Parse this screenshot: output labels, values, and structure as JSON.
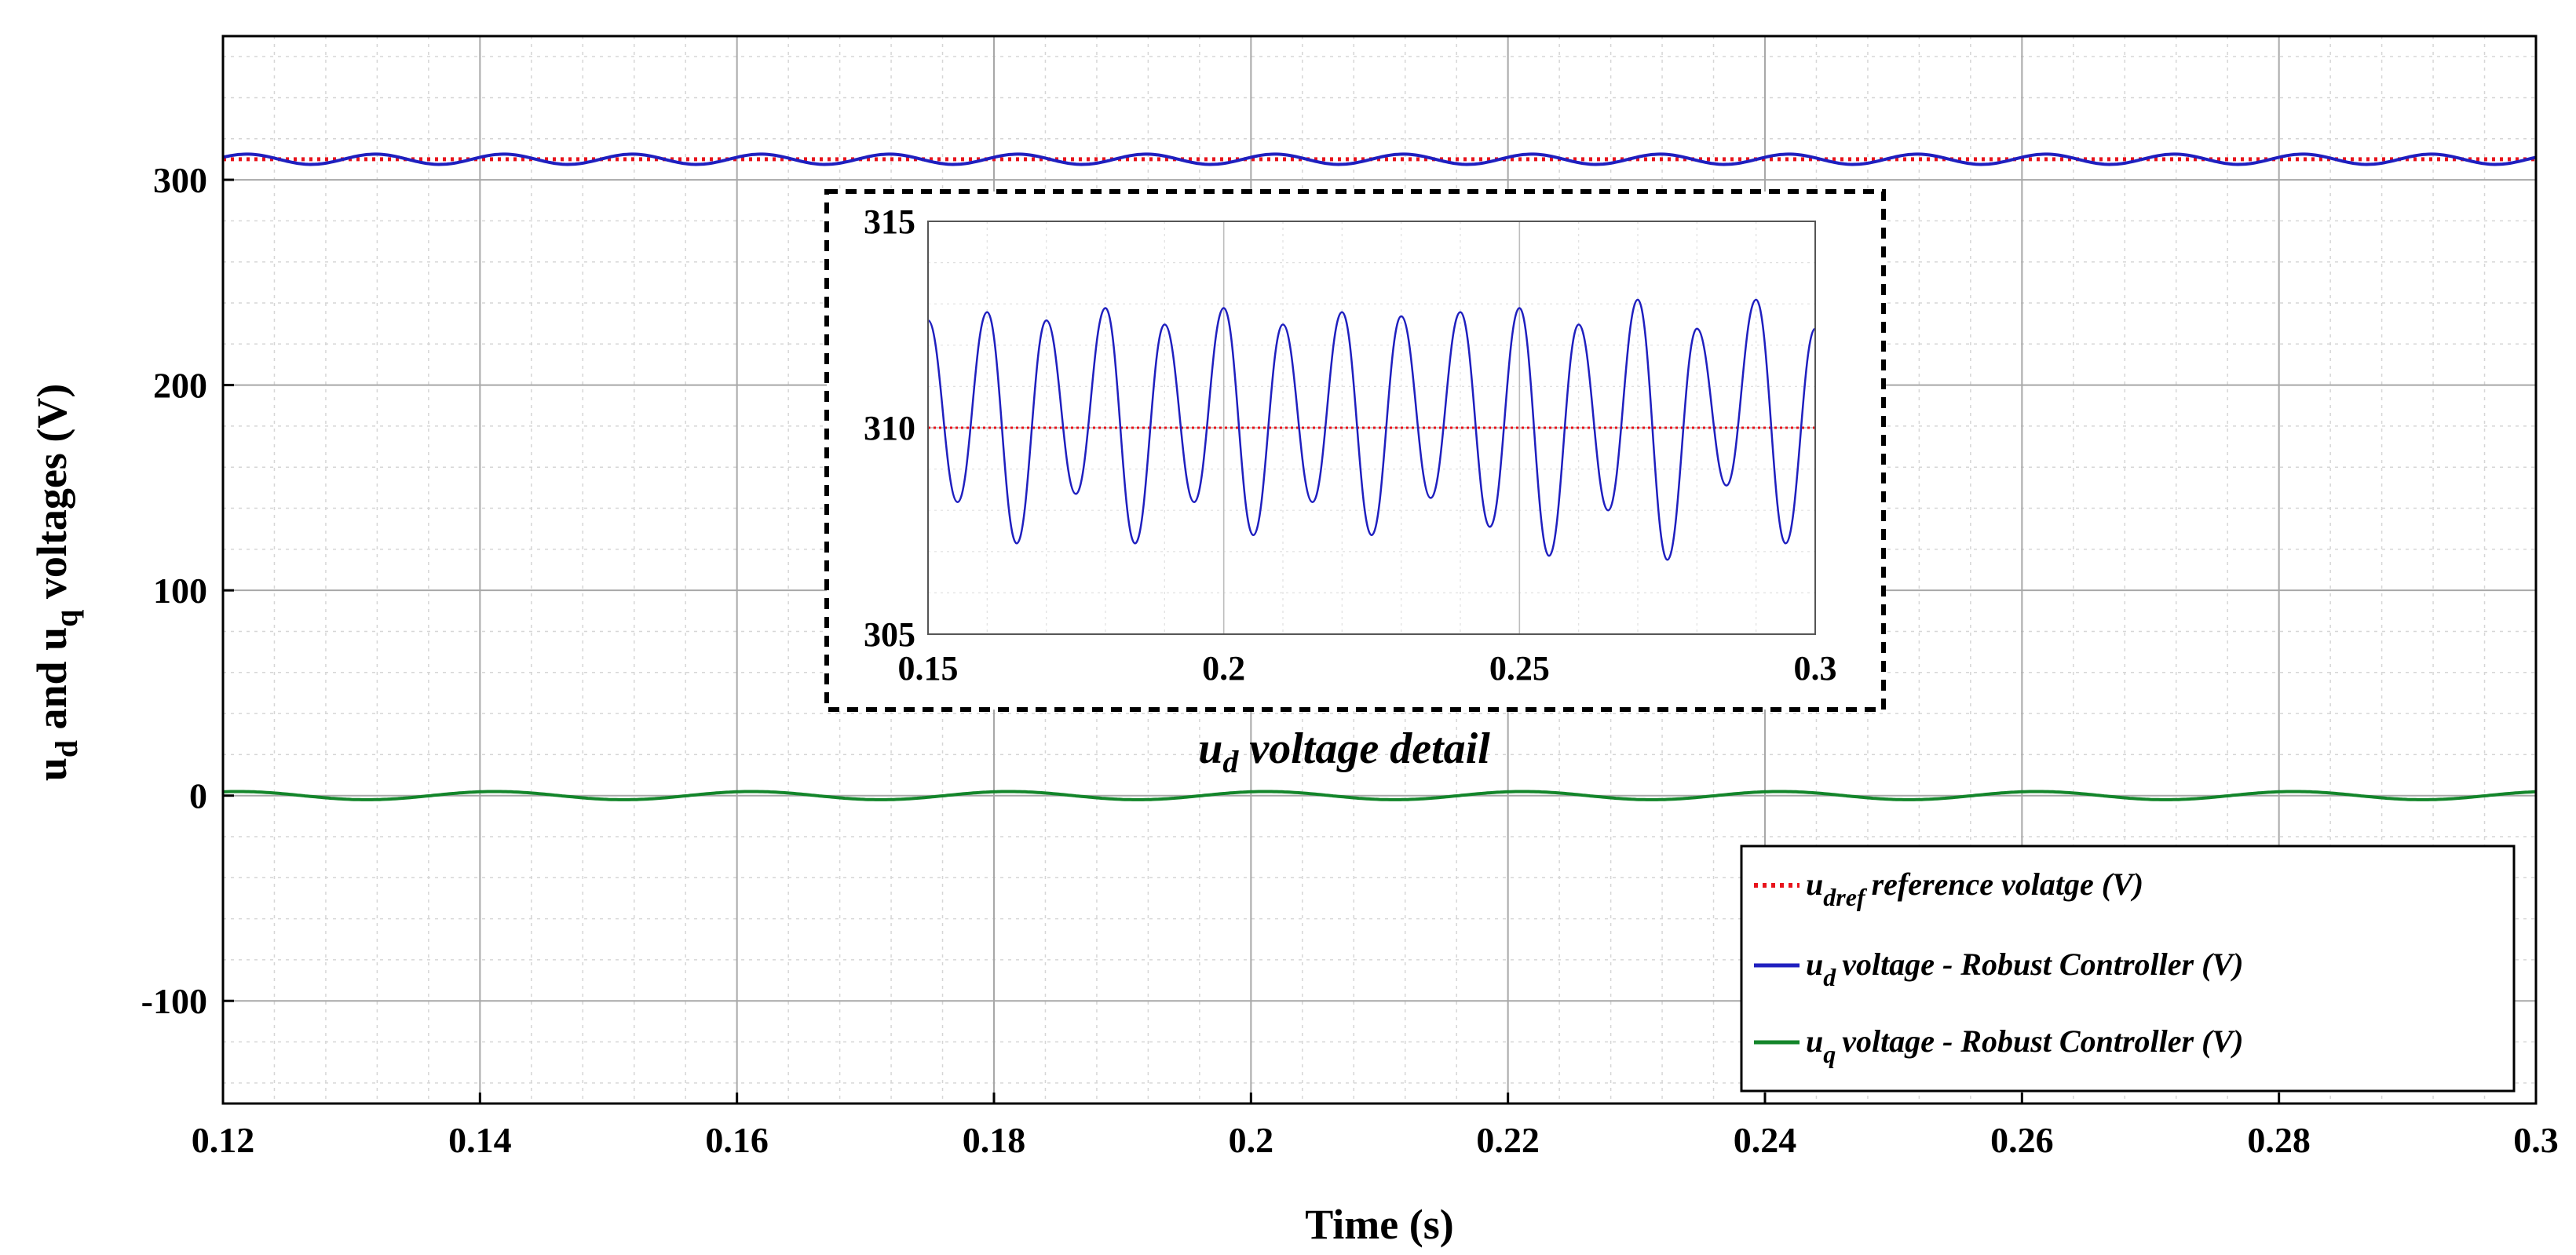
{
  "chart_data": [
    {
      "type": "line",
      "title": "",
      "xlabel": "Time (s)",
      "ylabel": {
        "base1": "u",
        "sub1": "d",
        "mid": " and u",
        "sub2": "q",
        "tail": " voltages (V)"
      },
      "xlim": [
        0.12,
        0.3
      ],
      "ylim": [
        -150,
        370
      ],
      "x_ticks": [
        0.12,
        0.14,
        0.16,
        0.18,
        0.2,
        0.22,
        0.24,
        0.26,
        0.28,
        0.3
      ],
      "x_tick_labels": [
        "0.12",
        "0.14",
        "0.16",
        "0.18",
        "0.2",
        "0.22",
        "0.24",
        "0.26",
        "0.28",
        "0.3"
      ],
      "y_ticks": [
        -100,
        0,
        100,
        200,
        300
      ],
      "y_tick_labels": [
        "-100",
        "0",
        "100",
        "200",
        "300"
      ],
      "grid": true,
      "series": [
        {
          "name": "u_dref reference volatge (V)",
          "style": "dotted",
          "color": "#e8141c",
          "constant": 310
        },
        {
          "name": "u_d voltage - Robust Controller (V)",
          "style": "solid",
          "color": "#1f1fbf",
          "mean": 310,
          "amplitude": 2.5,
          "frequency_hz": 100
        },
        {
          "name": "u_q voltage - Robust Controller (V)",
          "style": "solid",
          "color": "#13852a",
          "mean": 0,
          "amplitude": 2,
          "frequency_hz": 50
        }
      ],
      "legend": {
        "placement": "bottom-right",
        "entries": [
          {
            "base": "u",
            "sub": "dref",
            "text": "reference volatge (V)",
            "color": "#e8141c",
            "style": "dotted"
          },
          {
            "base": "u",
            "sub": "d",
            "text": "voltage - Robust Controller (V)",
            "color": "#1f1fbf",
            "style": "solid"
          },
          {
            "base": "u",
            "sub": "q",
            "text": "voltage - Robust Controller (V)",
            "color": "#13852a",
            "style": "solid"
          }
        ]
      }
    },
    {
      "type": "line",
      "title": {
        "base": "u",
        "sub": "d",
        "text": " voltage detail"
      },
      "xlim": [
        0.15,
        0.3
      ],
      "ylim": [
        305,
        315
      ],
      "x_ticks": [
        0.15,
        0.2,
        0.25,
        0.3
      ],
      "x_tick_labels": [
        "0.15",
        "0.2",
        "0.25",
        "0.3"
      ],
      "y_ticks": [
        305,
        310,
        315
      ],
      "y_tick_labels": [
        "305",
        "310",
        "315"
      ],
      "grid": true,
      "series": [
        {
          "name": "u_dref",
          "style": "dotted",
          "color": "#e8141c",
          "constant": 310
        },
        {
          "name": "u_d",
          "style": "solid",
          "color": "#1f1fbf",
          "x": [
            0.15,
            0.155,
            0.16,
            0.165,
            0.17,
            0.175,
            0.18,
            0.185,
            0.19,
            0.195,
            0.2,
            0.205,
            0.21,
            0.215,
            0.22,
            0.225,
            0.23,
            0.235,
            0.24,
            0.245,
            0.25,
            0.255,
            0.26,
            0.265,
            0.27,
            0.275,
            0.28,
            0.285,
            0.29,
            0.295,
            0.3
          ],
          "y": [
            312.6,
            308.2,
            312.8,
            307.2,
            312.6,
            308.4,
            312.9,
            307.2,
            312.5,
            308.2,
            312.9,
            307.4,
            312.5,
            308.2,
            312.8,
            307.4,
            312.7,
            308.3,
            312.8,
            307.6,
            312.9,
            306.9,
            312.5,
            308.0,
            313.1,
            306.8,
            312.4,
            308.6,
            313.1,
            307.2,
            312.4
          ]
        }
      ]
    }
  ]
}
